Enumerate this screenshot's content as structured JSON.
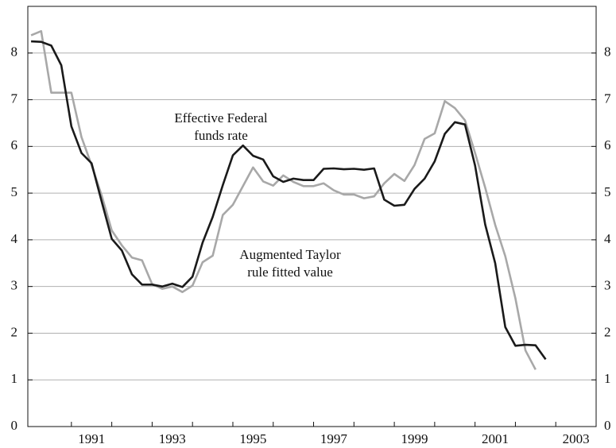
{
  "chart_data": {
    "type": "line",
    "annotations": [
      "Effective Federal",
      "funds rate",
      "Augmented Taylor",
      "rule fitted value"
    ],
    "x": [
      1990.0,
      1990.25,
      1990.5,
      1990.75,
      1991.0,
      1991.25,
      1991.5,
      1991.75,
      1992.0,
      1992.25,
      1992.5,
      1992.75,
      1993.0,
      1993.25,
      1993.5,
      1993.75,
      1994.0,
      1994.25,
      1994.5,
      1994.75,
      1995.0,
      1995.25,
      1995.5,
      1995.75,
      1996.0,
      1996.25,
      1996.5,
      1996.75,
      1997.0,
      1997.25,
      1997.5,
      1997.75,
      1998.0,
      1998.25,
      1998.5,
      1998.75,
      1999.0,
      1999.25,
      1999.5,
      1999.75,
      2000.0,
      2000.25,
      2000.5,
      2000.75,
      2001.0,
      2001.25,
      2001.5,
      2001.75,
      2002.0,
      2002.25,
      2002.5,
      2002.75
    ],
    "series": [
      {
        "name": "Effective Federal funds rate",
        "color": "#1a1a1a",
        "values": [
          8.25,
          8.24,
          8.16,
          7.74,
          6.43,
          5.86,
          5.64,
          4.82,
          4.02,
          3.77,
          3.26,
          3.04,
          3.04,
          3.0,
          3.06,
          2.99,
          3.21,
          3.94,
          4.49,
          5.17,
          5.81,
          6.02,
          5.8,
          5.72,
          5.36,
          5.24,
          5.31,
          5.28,
          5.28,
          5.52,
          5.53,
          5.51,
          5.52,
          5.5,
          5.53,
          4.86,
          4.73,
          4.75,
          5.09,
          5.31,
          5.68,
          6.27,
          6.52,
          6.47,
          5.59,
          4.33,
          3.5,
          2.13,
          1.73,
          1.75,
          1.74,
          1.44
        ]
      },
      {
        "name": "Augmented Taylor rule fitted value",
        "color": "#a8a8a8",
        "values": [
          8.38,
          8.47,
          7.15,
          7.15,
          7.15,
          6.2,
          5.6,
          4.95,
          4.2,
          3.88,
          3.62,
          3.56,
          3.05,
          2.95,
          3.0,
          2.88,
          3.02,
          3.52,
          3.66,
          4.53,
          4.75,
          5.15,
          5.55,
          5.25,
          5.16,
          5.38,
          5.24,
          5.15,
          5.15,
          5.21,
          5.06,
          4.97,
          4.97,
          4.89,
          4.93,
          5.21,
          5.41,
          5.26,
          5.6,
          6.16,
          6.28,
          6.97,
          6.82,
          6.56,
          5.86,
          5.12,
          4.32,
          3.65,
          2.75,
          1.63,
          1.22,
          null
        ]
      }
    ],
    "xlim": [
      1989.92,
      2004
    ],
    "xticks": [
      {
        "value": 1991.5,
        "label": "1991"
      },
      {
        "value": 1993.5,
        "label": "1993"
      },
      {
        "value": 1995.5,
        "label": "1995"
      },
      {
        "value": 1997.5,
        "label": "1997"
      },
      {
        "value": 1999.5,
        "label": "1999"
      },
      {
        "value": 2001.5,
        "label": "2001"
      },
      {
        "value": 2003.5,
        "label": "2003"
      }
    ],
    "x_tick_marks": [
      1991,
      1992,
      1993,
      1994,
      1995,
      1996,
      1997,
      1998,
      1999,
      2000,
      2001,
      2002,
      2003
    ],
    "ylim": [
      0,
      9
    ],
    "yticks": [
      0,
      1,
      2,
      3,
      4,
      5,
      6,
      7,
      8
    ],
    "grid": true
  }
}
